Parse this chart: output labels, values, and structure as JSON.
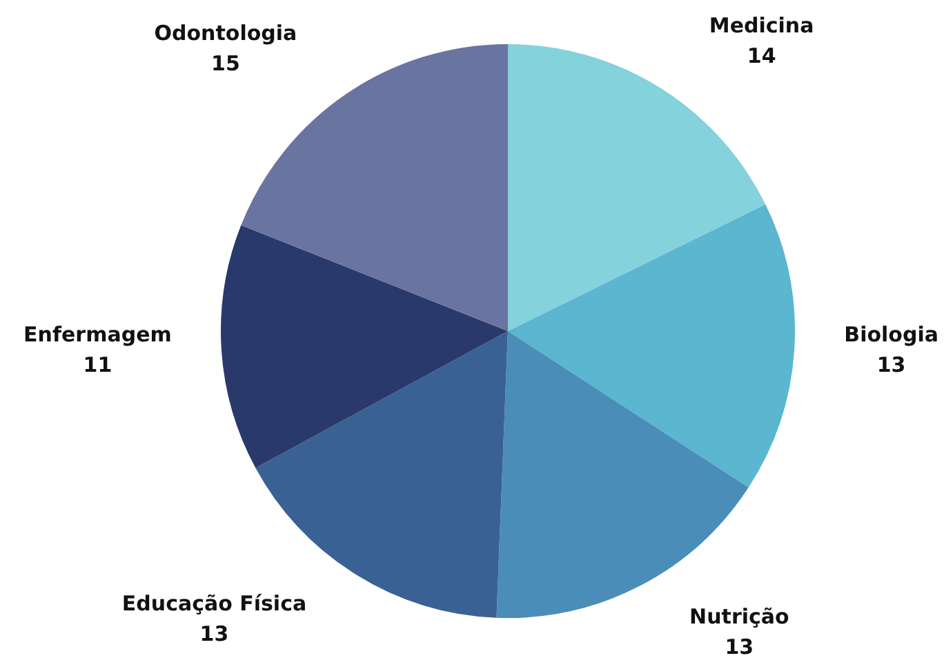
{
  "chart_data": {
    "type": "pie",
    "categories": [
      "Medicina",
      "Biologia",
      "Nutrição",
      "Educação Física",
      "Enfermagem",
      "Odontologia"
    ],
    "values": [
      14,
      13,
      13,
      13,
      11,
      15
    ],
    "colors": [
      "#84d2db",
      "#5bb6cf",
      "#4a8db9",
      "#3a6194",
      "#2a396b",
      "#6a74a0"
    ],
    "data_labels": true
  }
}
